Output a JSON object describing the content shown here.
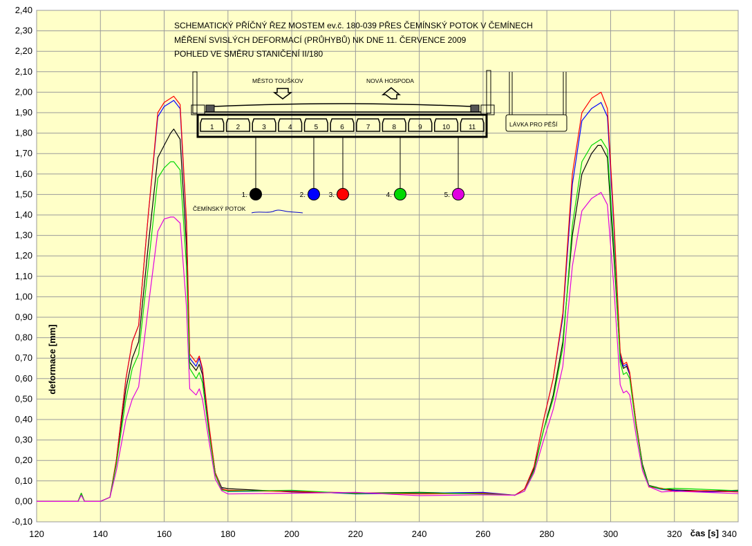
{
  "chart_data": {
    "type": "line",
    "title": "SCHEMATICKÝ PŘÍČNÝ ŘEZ MOSTEM ev.č. 180-039 PŘES ČEMÍNSKÝ POTOK V ČEMÍNECH",
    "subtitle": "MĚŘENÍ SVISLÝCH DEFORMACÍ (PRŮHYBŮ) NK DNE 11. ČERVENCE 2009",
    "subtitle2": "POHLED VE SMĚRU STANIČENÍ II/180",
    "xlabel": "čas [s]",
    "ylabel": "deformace [mm]",
    "xlim": [
      120,
      340
    ],
    "ylim": [
      -0.1,
      2.4
    ],
    "x_ticks": [
      "120",
      "140",
      "160",
      "180",
      "200",
      "220",
      "240",
      "260",
      "280",
      "300",
      "320",
      "340"
    ],
    "y_ticks": [
      "-0,10",
      "0,00",
      "0,10",
      "0,20",
      "0,30",
      "0,40",
      "0,50",
      "0,60",
      "0,70",
      "0,80",
      "0,90",
      "1,00",
      "1,10",
      "1,20",
      "1,30",
      "1,40",
      "1,50",
      "1,60",
      "1,70",
      "1,80",
      "1,90",
      "2,00",
      "2,10",
      "2,20",
      "2,30",
      "2,40"
    ],
    "grid": true,
    "background": "#ffffc8",
    "series": [
      {
        "name": "1.",
        "color": "#000000",
        "x": [
          120,
          133,
          134,
          135,
          140,
          143,
          145,
          148,
          150,
          152,
          155,
          158,
          160,
          162,
          163,
          165,
          167,
          168,
          170,
          171,
          172,
          174,
          176,
          178,
          180,
          200,
          220,
          240,
          260,
          270,
          273,
          276,
          279,
          282,
          285,
          288,
          291,
          294,
          296,
          297,
          299,
          301,
          303,
          304,
          305,
          306,
          308,
          310,
          312,
          316,
          320,
          330,
          340
        ],
        "y": [
          0.0,
          0.0,
          0.04,
          0.0,
          0.0,
          0.02,
          0.2,
          0.55,
          0.7,
          0.78,
          1.25,
          1.68,
          1.74,
          1.8,
          1.82,
          1.77,
          1.25,
          0.68,
          0.64,
          0.67,
          0.62,
          0.36,
          0.14,
          0.07,
          0.06,
          0.05,
          0.04,
          0.04,
          0.04,
          0.03,
          0.06,
          0.16,
          0.35,
          0.52,
          0.78,
          1.3,
          1.6,
          1.7,
          1.74,
          1.74,
          1.68,
          1.2,
          0.7,
          0.65,
          0.66,
          0.62,
          0.38,
          0.18,
          0.08,
          0.06,
          0.06,
          0.05,
          0.05
        ]
      },
      {
        "name": "2.",
        "color": "#0000ff",
        "x": [
          120,
          133,
          134,
          135,
          140,
          143,
          145,
          148,
          150,
          152,
          155,
          158,
          160,
          162,
          163,
          165,
          167,
          168,
          170,
          171,
          172,
          174,
          176,
          178,
          180,
          200,
          220,
          240,
          260,
          270,
          273,
          276,
          279,
          282,
          285,
          288,
          291,
          294,
          296,
          297,
          299,
          301,
          303,
          304,
          305,
          306,
          308,
          310,
          312,
          316,
          320,
          330,
          340
        ],
        "y": [
          0.0,
          0.0,
          0.04,
          0.0,
          0.0,
          0.02,
          0.2,
          0.6,
          0.78,
          0.86,
          1.4,
          1.88,
          1.93,
          1.95,
          1.96,
          1.92,
          1.35,
          0.7,
          0.66,
          0.7,
          0.64,
          0.37,
          0.14,
          0.06,
          0.05,
          0.05,
          0.04,
          0.04,
          0.04,
          0.03,
          0.06,
          0.17,
          0.4,
          0.6,
          0.9,
          1.55,
          1.86,
          1.92,
          1.94,
          1.95,
          1.88,
          1.35,
          0.72,
          0.66,
          0.67,
          0.62,
          0.38,
          0.17,
          0.07,
          0.06,
          0.05,
          0.05,
          0.05
        ]
      },
      {
        "name": "3.",
        "color": "#ff0000",
        "x": [
          120,
          133,
          134,
          135,
          140,
          143,
          145,
          148,
          150,
          152,
          155,
          158,
          160,
          162,
          163,
          165,
          167,
          168,
          170,
          171,
          172,
          174,
          176,
          178,
          180,
          200,
          220,
          240,
          260,
          270,
          273,
          276,
          279,
          282,
          285,
          288,
          291,
          294,
          296,
          297,
          299,
          301,
          303,
          304,
          305,
          306,
          308,
          310,
          312,
          316,
          320,
          330,
          340
        ],
        "y": [
          0.0,
          0.0,
          0.04,
          0.0,
          0.0,
          0.02,
          0.2,
          0.6,
          0.78,
          0.86,
          1.4,
          1.9,
          1.95,
          1.97,
          1.98,
          1.94,
          1.37,
          0.72,
          0.68,
          0.71,
          0.65,
          0.38,
          0.14,
          0.06,
          0.05,
          0.05,
          0.04,
          0.04,
          0.04,
          0.03,
          0.06,
          0.17,
          0.4,
          0.6,
          0.92,
          1.6,
          1.9,
          1.97,
          1.99,
          2.0,
          1.92,
          1.38,
          0.73,
          0.67,
          0.68,
          0.63,
          0.38,
          0.17,
          0.07,
          0.06,
          0.05,
          0.05,
          0.05
        ]
      },
      {
        "name": "4.",
        "color": "#00d800",
        "x": [
          120,
          133,
          134,
          135,
          140,
          143,
          145,
          148,
          150,
          152,
          155,
          158,
          160,
          162,
          163,
          165,
          167,
          168,
          170,
          171,
          172,
          174,
          176,
          178,
          180,
          200,
          220,
          240,
          260,
          270,
          273,
          276,
          279,
          282,
          285,
          288,
          291,
          294,
          296,
          297,
          299,
          301,
          303,
          304,
          305,
          306,
          308,
          310,
          312,
          316,
          320,
          330,
          340
        ],
        "y": [
          0.0,
          0.0,
          0.04,
          0.0,
          0.0,
          0.02,
          0.18,
          0.5,
          0.65,
          0.72,
          1.15,
          1.58,
          1.63,
          1.66,
          1.66,
          1.62,
          1.15,
          0.65,
          0.6,
          0.63,
          0.58,
          0.34,
          0.13,
          0.06,
          0.05,
          0.05,
          0.04,
          0.04,
          0.04,
          0.03,
          0.05,
          0.15,
          0.35,
          0.5,
          0.75,
          1.35,
          1.66,
          1.74,
          1.76,
          1.77,
          1.72,
          1.25,
          0.68,
          0.62,
          0.63,
          0.6,
          0.36,
          0.17,
          0.08,
          0.06,
          0.06,
          0.06,
          0.05
        ]
      },
      {
        "name": "5.",
        "color": "#e000e0",
        "x": [
          120,
          133,
          134,
          135,
          140,
          143,
          145,
          148,
          150,
          152,
          155,
          158,
          160,
          162,
          163,
          165,
          167,
          168,
          170,
          171,
          172,
          174,
          176,
          178,
          180,
          200,
          220,
          240,
          260,
          270,
          273,
          276,
          279,
          282,
          285,
          288,
          291,
          294,
          296,
          297,
          299,
          301,
          303,
          304,
          305,
          306,
          308,
          310,
          312,
          316,
          320,
          330,
          340
        ],
        "y": [
          0.0,
          0.0,
          0.03,
          0.0,
          0.0,
          0.02,
          0.15,
          0.4,
          0.5,
          0.56,
          0.95,
          1.32,
          1.38,
          1.39,
          1.39,
          1.36,
          0.95,
          0.55,
          0.52,
          0.55,
          0.5,
          0.3,
          0.11,
          0.05,
          0.04,
          0.04,
          0.04,
          0.03,
          0.03,
          0.03,
          0.05,
          0.14,
          0.3,
          0.45,
          0.66,
          1.15,
          1.42,
          1.48,
          1.5,
          1.51,
          1.45,
          1.05,
          0.57,
          0.53,
          0.54,
          0.52,
          0.32,
          0.15,
          0.07,
          0.05,
          0.05,
          0.04,
          0.04
        ]
      }
    ]
  },
  "diagram": {
    "left_label": "MĚSTO TOUŠKOV",
    "right_label": "NOVÁ HOSPODA",
    "footbridge_label": "LÁVKA PRO PĚŠÍ",
    "stream_label": "ČEMÍNSKÝ POTOK",
    "beam_numbers": [
      "1",
      "2",
      "3",
      "4",
      "5",
      "6",
      "7",
      "8",
      "9",
      "10",
      "11"
    ],
    "sensors": [
      {
        "label": "1.",
        "color": "#000000"
      },
      {
        "label": "2.",
        "color": "#0000ff"
      },
      {
        "label": "3.",
        "color": "#ff0000"
      },
      {
        "label": "4.",
        "color": "#00d800"
      },
      {
        "label": "5.",
        "color": "#e000e0"
      }
    ]
  }
}
